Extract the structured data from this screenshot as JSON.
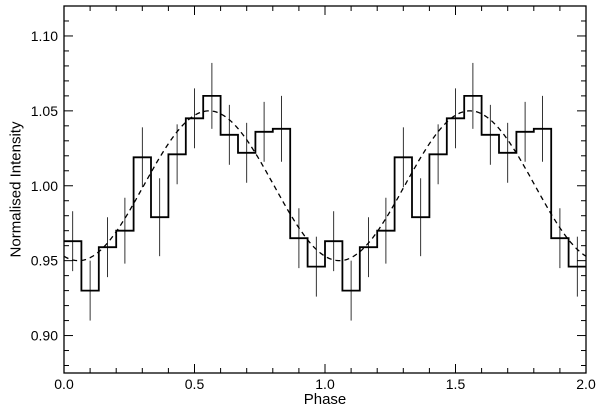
{
  "chart_data": {
    "type": "line",
    "title": "",
    "xlabel": "Phase",
    "ylabel": "Normalised Intensity",
    "xlim": [
      0.0,
      2.0
    ],
    "ylim": [
      0.875,
      1.12
    ],
    "x_ticks": [
      "0.0",
      "0.5",
      "1.0",
      "1.5",
      "2.0"
    ],
    "y_ticks": [
      "0.90",
      "0.95",
      "1.00",
      "1.05",
      "1.10"
    ],
    "grid": false,
    "legend": "none",
    "series": [
      {
        "style": "histogram-step",
        "bin_width": 0.0667,
        "x": [
          0.0,
          0.0667,
          0.1333,
          0.2,
          0.2667,
          0.3333,
          0.4,
          0.4667,
          0.5333,
          0.6,
          0.6667,
          0.7333,
          0.8,
          0.8667,
          0.9333,
          1.0,
          1.0667,
          1.1333,
          1.2,
          1.2667,
          1.3333,
          1.4,
          1.4667,
          1.5333,
          1.6,
          1.6667,
          1.7333,
          1.8,
          1.8667,
          1.9333
        ],
        "values": [
          0.963,
          0.93,
          0.959,
          0.97,
          1.019,
          0.979,
          1.021,
          1.045,
          1.06,
          1.034,
          1.022,
          1.036,
          1.038,
          0.965,
          0.946,
          0.963,
          0.93,
          0.959,
          0.97,
          1.019,
          0.979,
          1.021,
          1.045,
          1.06,
          1.034,
          1.022,
          1.036,
          1.038,
          0.965,
          0.946
        ],
        "errors": [
          0.02,
          0.02,
          0.02,
          0.022,
          0.02,
          0.026,
          0.02,
          0.02,
          0.022,
          0.02,
          0.02,
          0.02,
          0.022,
          0.02,
          0.02,
          0.02,
          0.02,
          0.02,
          0.022,
          0.02,
          0.026,
          0.02,
          0.02,
          0.022,
          0.02,
          0.02,
          0.02,
          0.022,
          0.02,
          0.02
        ]
      },
      {
        "style": "dashed-sinusoid-fit",
        "mean": 1.0,
        "amplitude": 0.05,
        "peak_phase": 0.555
      }
    ]
  }
}
